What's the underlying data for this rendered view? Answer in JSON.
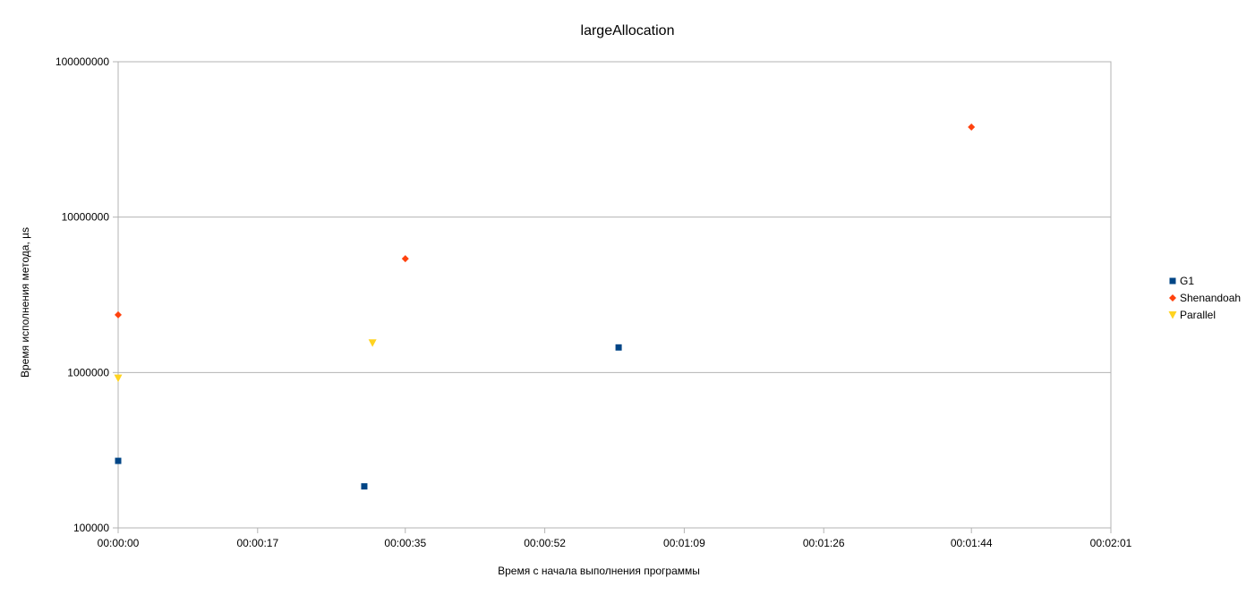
{
  "chart_data": {
    "type": "scatter",
    "title": "largeAllocation",
    "xlabel": "Время с начала выполнения программы",
    "ylabel": "Время исполнения метода, µs",
    "x_unit": "time",
    "xlim": [
      "00:00:00",
      "00:02:01"
    ],
    "x_ticks": [
      "00:00:00",
      "00:00:17",
      "00:00:35",
      "00:00:52",
      "00:01:09",
      "00:01:26",
      "00:01:44",
      "00:02:01"
    ],
    "y_scale": "log",
    "ylim": [
      100000,
      100000000
    ],
    "y_ticks": [
      "100000",
      "1000000",
      "10000000",
      "100000000"
    ],
    "grid": "horizontal",
    "legend_position": "right",
    "series": [
      {
        "name": "G1",
        "marker": "square",
        "color": "#004586",
        "points": [
          {
            "x": "00:00:00",
            "y": 270000
          },
          {
            "x": "00:00:30",
            "y": 185000
          },
          {
            "x": "00:01:01",
            "y": 1450000
          }
        ]
      },
      {
        "name": "Shenandoah",
        "marker": "diamond",
        "color": "#ff420e",
        "points": [
          {
            "x": "00:00:00",
            "y": 2350000
          },
          {
            "x": "00:00:35",
            "y": 5400000
          },
          {
            "x": "00:01:44",
            "y": 38000000
          }
        ]
      },
      {
        "name": "Parallel",
        "marker": "triangle-down",
        "color": "#ffd320",
        "points": [
          {
            "x": "00:00:00",
            "y": 920000
          },
          {
            "x": "00:00:31",
            "y": 1550000
          }
        ]
      }
    ]
  }
}
